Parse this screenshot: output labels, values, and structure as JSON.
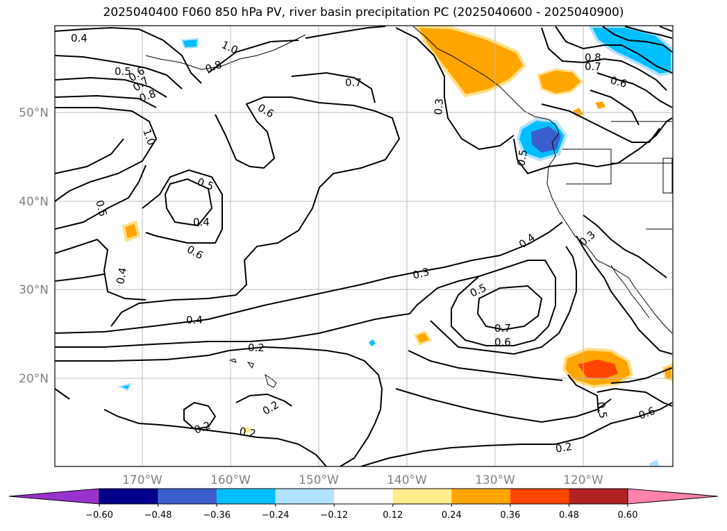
{
  "title": "2025040400 F060 850 hPa PV, river basin precipitation PC (2025040600 - 2025040900)",
  "latitude_labels": [
    "50°N",
    "40°N",
    "30°N",
    "20°N"
  ],
  "longitude_labels": [
    "170°W",
    "160°W",
    "150°W",
    "140°W",
    "130°W",
    "120°W"
  ],
  "contour_labels": [
    "0.4",
    "1.0",
    "0.5",
    "0.6",
    "0.7",
    "0.8",
    "0.8",
    "1.0",
    "0.7",
    "0.3",
    "0.6",
    "0.5",
    "0.4",
    "0.6",
    "0.5",
    "0.4",
    "0.3",
    "0.5",
    "0.7",
    "0.6",
    "0.4",
    "0.2",
    "0.2",
    "0.2",
    "0.2",
    "0.2",
    "0.4",
    "0.3",
    "0.5",
    "0.6",
    "0.8",
    "0.7",
    "0.6",
    "0.5"
  ],
  "colorbar": {
    "tick_labels": [
      "−0.60",
      "−0.48",
      "−0.36",
      "−0.24",
      "−0.12",
      "0.12",
      "0.24",
      "0.36",
      "0.48",
      "0.60"
    ],
    "colors": [
      "#9932cc",
      "#00008b",
      "#3a5fcd",
      "#00bfff",
      "#b0e2ff",
      "#ffffff",
      "#ffec8b",
      "#ffa500",
      "#ff4500",
      "#b22222",
      "#ff82ab"
    ]
  }
}
